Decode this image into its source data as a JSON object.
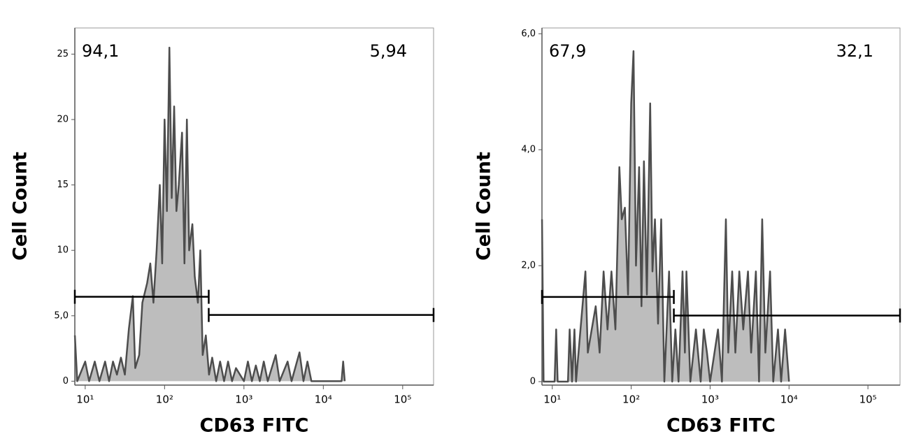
{
  "chart_data": [
    {
      "type": "area",
      "xscale": "log",
      "xlabel": "CD63 FITC",
      "ylabel": "Cell Count",
      "color": "#bdbdbd",
      "line_color": "#4d4d4d",
      "x": [
        7.41,
        7.94,
        10,
        11.2,
        13.2,
        15.1,
        17.8,
        20,
        22.4,
        25.1,
        28.2,
        31.6,
        35.5,
        39.8,
        42.7,
        47.9,
        52.5,
        60.3,
        66.1,
        72.4,
        79.4,
        87.1,
        93.3,
        100,
        107,
        115,
        123,
        132,
        141,
        151,
        166,
        178,
        191,
        204,
        224,
        240,
        263,
        282,
        302,
        331,
        363,
        398,
        447,
        501,
        562,
        631,
        708,
        794,
        1000,
        1122,
        1259,
        1413,
        1585,
        1778,
        1995,
        2512,
        2818,
        3548,
        3981,
        5012,
        5623,
        6310,
        7079,
        16982,
        17783,
        18621
      ],
      "values": [
        3.5,
        0,
        1.5,
        0,
        1.5,
        0,
        1.5,
        0,
        1.5,
        0.5,
        1.8,
        0.5,
        4.0,
        6.5,
        1.0,
        2.0,
        6.0,
        7.5,
        9.0,
        6.0,
        10,
        15,
        9,
        20,
        13,
        25.5,
        14,
        21,
        13,
        15,
        19,
        9,
        20,
        10,
        12,
        8,
        6,
        10,
        2,
        3.5,
        0.5,
        1.8,
        0,
        1.5,
        0,
        1.5,
        0,
        1.0,
        0,
        1.5,
        0,
        1.2,
        0,
        1.5,
        0,
        2,
        0,
        1.5,
        0,
        2.2,
        0,
        1.5,
        0,
        0,
        1.5,
        0
      ],
      "xlim": [
        7.4,
        245000
      ],
      "ylim": [
        -0.3,
        27
      ],
      "xticks": [
        {
          "value": 10,
          "label": "10¹"
        },
        {
          "value": 100,
          "label": "10²"
        },
        {
          "value": 1000,
          "label": "10³"
        },
        {
          "value": 10000,
          "label": "10⁴"
        },
        {
          "value": 100000,
          "label": "10⁵"
        }
      ],
      "yticks": [
        0,
        {
          "value": 5,
          "label": "5,0"
        },
        10,
        15,
        20,
        25
      ],
      "gates": [
        {
          "label": "94,1",
          "xrange": [
            7.4,
            360
          ],
          "y": 6.45
        },
        {
          "label": "5,94",
          "xrange": [
            360,
            245000
          ],
          "y": 5.06
        }
      ]
    },
    {
      "type": "area",
      "xscale": "log",
      "xlabel": "CD63 FITC",
      "ylabel": "Cell Count",
      "color": "#bdbdbd",
      "line_color": "#4d4d4d",
      "x": [
        7.41,
        7.76,
        10.7,
        11.2,
        11.7,
        15.8,
        16.6,
        17.8,
        19.1,
        20,
        26.3,
        28.2,
        31.6,
        35.5,
        39.8,
        44.7,
        50.1,
        56.2,
        63.1,
        70.8,
        75.9,
        83.2,
        91.2,
        100,
        107,
        115,
        126,
        135,
        145,
        158,
        174,
        186,
        200,
        219,
        240,
        263,
        302,
        331,
        363,
        398,
        447,
        479,
        501,
        562,
        661,
        759,
        832,
        912,
        1000,
        1259,
        1413,
        1585,
        1698,
        1905,
        2089,
        2344,
        2630,
        3020,
        3311,
        3802,
        4169,
        4571,
        5012,
        5754,
        6310,
        7244,
        7943,
        8913,
        10000
      ],
      "values": [
        2.8,
        0,
        0,
        0.9,
        0,
        0,
        0.9,
        0,
        0.9,
        0,
        1.9,
        0.5,
        0.9,
        1.3,
        0.5,
        1.9,
        0.9,
        1.9,
        0.9,
        3.7,
        2.8,
        3.0,
        1.5,
        4.8,
        5.7,
        2.0,
        3.7,
        1.3,
        3.8,
        1.5,
        4.8,
        1.9,
        2.8,
        1.0,
        2.8,
        0,
        1.9,
        0,
        0.9,
        0,
        1.9,
        0.5,
        1.9,
        0,
        0.9,
        0,
        0.9,
        0.5,
        0,
        0.9,
        0,
        2.8,
        0.5,
        1.9,
        0.5,
        1.9,
        0.9,
        1.9,
        0.5,
        1.9,
        0,
        2.8,
        0.5,
        1.9,
        0,
        0.9,
        0,
        0.9,
        0
      ],
      "xlim": [
        7.4,
        255000
      ],
      "ylim": [
        -0.06,
        6.1
      ],
      "xticks": [
        {
          "value": 10,
          "label": "10¹"
        },
        {
          "value": 100,
          "label": "10²"
        },
        {
          "value": 1000,
          "label": "10³"
        },
        {
          "value": 10000,
          "label": "10⁴"
        },
        {
          "value": 100000,
          "label": "10⁵"
        }
      ],
      "yticks": [
        0,
        {
          "value": 2,
          "label": "2,0"
        },
        {
          "value": 4,
          "label": "4,0"
        },
        {
          "value": 6,
          "label": "6,0"
        }
      ],
      "gates": [
        {
          "label": "67,9",
          "xrange": [
            7.4,
            347
          ],
          "y": 1.46
        },
        {
          "label": "32,1",
          "xrange": [
            347,
            255000
          ],
          "y": 1.14
        }
      ]
    }
  ]
}
